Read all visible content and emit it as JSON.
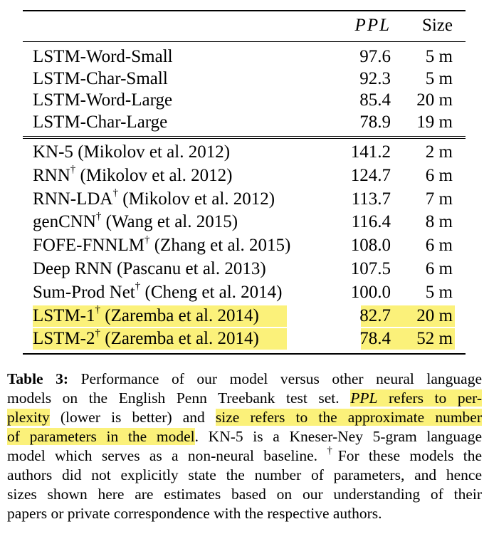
{
  "table": {
    "header": {
      "col_model": "",
      "col_ppl": "PPL",
      "col_size": "Size"
    },
    "group1": [
      {
        "model": "LSTM-Word-Small",
        "dagger": "",
        "cite": "",
        "ppl": "97.6",
        "size": "5 m"
      },
      {
        "model": "LSTM-Char-Small",
        "dagger": "",
        "cite": "",
        "ppl": "92.3",
        "size": "5 m"
      },
      {
        "model": "LSTM-Word-Large",
        "dagger": "",
        "cite": "",
        "ppl": "85.4",
        "size": "20 m"
      },
      {
        "model": "LSTM-Char-Large",
        "dagger": "",
        "cite": "",
        "ppl": "78.9",
        "size": "19 m"
      }
    ],
    "group2": [
      {
        "model": "KN-5",
        "dagger": "",
        "cite": " (Mikolov et al. 2012)",
        "ppl": "141.2",
        "size": "2 m"
      },
      {
        "model": "RNN",
        "dagger": "†",
        "cite": " (Mikolov et al. 2012)",
        "ppl": "124.7",
        "size": "6 m"
      },
      {
        "model": "RNN-LDA",
        "dagger": "†",
        "cite": " (Mikolov et al. 2012)",
        "ppl": "113.7",
        "size": "7 m"
      },
      {
        "model": "genCNN",
        "dagger": "†",
        "cite": " (Wang et al. 2015)",
        "ppl": "116.4",
        "size": "8 m"
      },
      {
        "model": "FOFE-FNNLM",
        "dagger": "†",
        "cite": " (Zhang et al. 2015)",
        "ppl": "108.0",
        "size": "6 m"
      },
      {
        "model": "Deep RNN",
        "dagger": "",
        "cite": " (Pascanu et al. 2013)",
        "ppl": "107.5",
        "size": "6 m"
      },
      {
        "model": "Sum-Prod Net",
        "dagger": "†",
        "cite": " (Cheng et al. 2014)",
        "ppl": "100.0",
        "size": "5 m"
      },
      {
        "model": "LSTM-1",
        "dagger": "†",
        "cite": " (Zaremba et al. 2014)",
        "ppl": "82.7",
        "size": "20 m",
        "highlight": true
      },
      {
        "model": "LSTM-2",
        "dagger": "†",
        "cite": " (Zaremba et al. 2014)",
        "ppl": "78.4",
        "size": "52 m",
        "highlight": true
      }
    ]
  },
  "caption": {
    "label": "Table 3:",
    "lines": [
      [
        {
          "t": "Table 3:",
          "b": true
        },
        {
          "t": " Performance of our model versus other neural language"
        }
      ],
      [
        {
          "t": "models on the English Penn Treebank test set. "
        },
        {
          "t": "PPL",
          "i": true,
          "h": true
        },
        {
          "t": " refers to per-",
          "h": true
        }
      ],
      [
        {
          "t": "plexity",
          "h": true
        },
        {
          "t": " (lower is better) and "
        },
        {
          "t": "size refers to the approximate number",
          "h": true
        }
      ],
      [
        {
          "t": "of parameters in the model",
          "h": true
        },
        {
          "t": ". KN-5 is a Kneser-Ney 5-gram language"
        }
      ],
      [
        {
          "t": "model which serves as a non-neural baseline. "
        },
        {
          "t": "†",
          "sup": true
        },
        {
          "t": "For these models the"
        }
      ],
      [
        {
          "t": "authors did not explicitly state the number of parameters, and hence"
        }
      ],
      [
        {
          "t": "sizes shown here are estimates based on our understanding of their"
        }
      ],
      [
        {
          "t": "papers or private correspondence with the respective authors."
        }
      ]
    ]
  },
  "colors": {
    "highlight": "#fbf17a",
    "text": "#000000"
  }
}
